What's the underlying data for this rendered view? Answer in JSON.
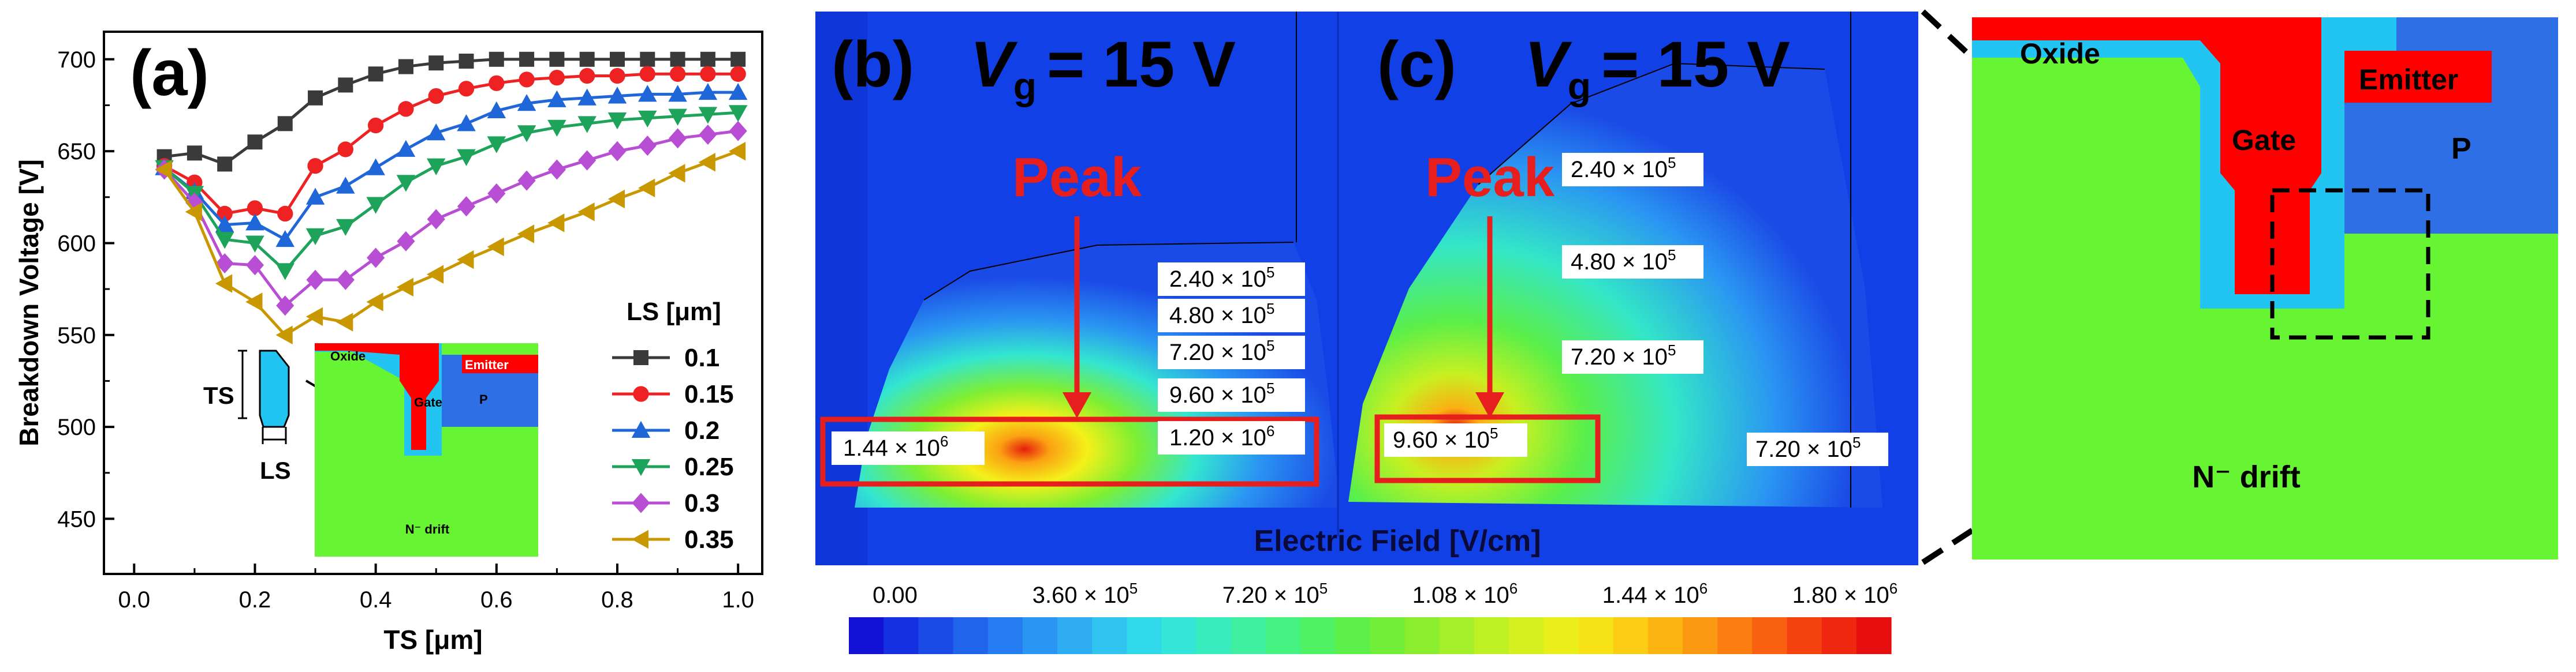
{
  "colors": {
    "series": [
      "#3a3a3a",
      "#ee2222",
      "#1f66d9",
      "#1ea35a",
      "#b84ed3",
      "#c99700"
    ],
    "red_annot": "#e61e1e",
    "gate": "#ff0000",
    "oxide": "#22c4f2",
    "p_region": "#2f6fe6",
    "n_drift": "#66f433",
    "dark_blue": "#1141e6"
  },
  "panel_a": {
    "label": "(a)",
    "legend_title": "LS [μm]",
    "inset": {
      "ts": "TS",
      "ls": "LS",
      "oxide": "Oxide",
      "gate": "Gate",
      "emitter": "Emitter",
      "p": "P",
      "n_drift": "N⁻ drift"
    }
  },
  "chart_data": {
    "type": "line",
    "xlabel": "TS [μm]",
    "ylabel": "Breakdown Voltage [V]",
    "xlim": [
      0,
      1.0
    ],
    "ylim": [
      420,
      715
    ],
    "xticks": [
      "0.0",
      "0.2",
      "0.4",
      "0.6",
      "0.8",
      "1.0"
    ],
    "yticks": [
      "450",
      "500",
      "550",
      "600",
      "650",
      "700"
    ],
    "x": [
      0.05,
      0.1,
      0.15,
      0.2,
      0.25,
      0.3,
      0.35,
      0.4,
      0.45,
      0.5,
      0.55,
      0.6,
      0.65,
      0.7,
      0.75,
      0.8,
      0.85,
      0.9,
      0.95,
      1.0
    ],
    "series": [
      {
        "name": "0.1",
        "marker": "square",
        "values": [
          647,
          649,
          643,
          655,
          665,
          679,
          686,
          692,
          696,
          698,
          699,
          700,
          700,
          700,
          700,
          700,
          700,
          700,
          700,
          700
        ]
      },
      {
        "name": "0.15",
        "marker": "circle",
        "values": [
          642,
          633,
          616,
          619,
          616,
          642,
          651,
          664,
          673,
          680,
          684,
          687,
          689,
          690,
          691,
          691,
          692,
          692,
          692,
          692
        ]
      },
      {
        "name": "0.2",
        "marker": "triangle-up",
        "values": [
          641,
          628,
          610,
          611,
          602,
          625,
          631,
          641,
          651,
          660,
          665,
          672,
          676,
          678,
          679,
          680,
          681,
          681,
          682,
          682
        ]
      },
      {
        "name": "0.25",
        "marker": "triangle-down",
        "values": [
          641,
          627,
          602,
          600,
          585,
          604,
          609,
          621,
          633,
          642,
          647,
          654,
          660,
          663,
          665,
          667,
          668,
          669,
          670,
          671
        ]
      },
      {
        "name": "0.3",
        "marker": "diamond",
        "values": [
          640,
          622,
          589,
          588,
          566,
          580,
          580,
          592,
          601,
          613,
          620,
          627,
          634,
          640,
          645,
          650,
          653,
          657,
          659,
          661
        ]
      },
      {
        "name": "0.35",
        "marker": "triangle-left",
        "values": [
          640,
          617,
          578,
          568,
          550,
          560,
          557,
          568,
          576,
          583,
          591,
          598,
          605,
          611,
          617,
          624,
          630,
          638,
          644,
          650
        ]
      }
    ]
  },
  "panel_b": {
    "label": "(b)",
    "vg": "V",
    "vg_sub": "g",
    "vg_value": "= 15 V",
    "peak": "Peak",
    "labels": [
      "2.40 × 10",
      "4.80 × 10",
      "7.20 × 10",
      "9.60 × 10",
      "1.20 × 10",
      "1.44 × 10"
    ],
    "exps": [
      "5",
      "5",
      "5",
      "5",
      "6",
      "6"
    ]
  },
  "panel_c": {
    "label": "(c)",
    "vg": "V",
    "vg_sub": "g",
    "vg_value": "= 15 V",
    "peak": "Peak",
    "labels": [
      "2.40 × 10",
      "4.80 × 10",
      "7.20 × 10",
      "9.60 × 10",
      "7.20 × 10"
    ],
    "exps": [
      "5",
      "5",
      "5",
      "5",
      "5"
    ]
  },
  "field_title": "Electric Field [V/cm]",
  "colorbar": {
    "ticks": [
      "0.00",
      "3.60 × 10",
      "7.20 × 10",
      "1.08 × 10",
      "1.44 × 10",
      "1.80 × 10"
    ],
    "exps": [
      "",
      "5",
      "5",
      "6",
      "6",
      "6"
    ],
    "colors": [
      "#1212d6",
      "#1530e0",
      "#1b4be6",
      "#2064ec",
      "#257cf0",
      "#2a95f2",
      "#2fadf2",
      "#31c4f0",
      "#31d8ea",
      "#33e6d7",
      "#38ecbd",
      "#3ff0a0",
      "#46f282",
      "#4ff165",
      "#5cef4a",
      "#70ee38",
      "#8aee2e",
      "#a4ef29",
      "#bef024",
      "#d6f01f",
      "#eaee1a",
      "#f7e217",
      "#fbcd15",
      "#fcb413",
      "#fc9912",
      "#fb7d10",
      "#f9600f",
      "#f5430f",
      "#ef270f",
      "#e60e0e"
    ]
  },
  "panel_d": {
    "oxide": "Oxide",
    "gate": "Gate",
    "emitter": "Emitter",
    "p": "P",
    "n_drift": "N⁻ drift"
  }
}
